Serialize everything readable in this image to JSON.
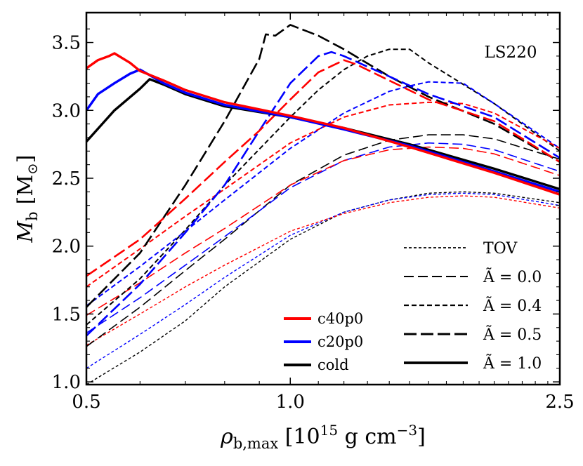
{
  "chart_data": {
    "type": "line",
    "title": "",
    "annotation": "LS220",
    "xscale": "log",
    "xlim": [
      0.5,
      2.5
    ],
    "ylim": [
      0.98,
      3.72
    ],
    "xticks": [
      {
        "value": 0.5,
        "label": "0.5"
      },
      {
        "value": 1.0,
        "label": "1.0"
      },
      {
        "value": 2.5,
        "label": "2.5"
      }
    ],
    "yticks": [
      {
        "value": 1.0,
        "label": "1.0"
      },
      {
        "value": 1.5,
        "label": "1.5"
      },
      {
        "value": 2.0,
        "label": "2.0"
      },
      {
        "value": 2.5,
        "label": "2.5"
      },
      {
        "value": 3.0,
        "label": "3.0"
      },
      {
        "value": 3.5,
        "label": "3.5"
      }
    ],
    "xlabel": {
      "main": "ρ",
      "sub": "b,max",
      "rest": " [10",
      "exp": "15",
      "units": " g cm",
      "units_exp": "−3",
      "close": "]"
    },
    "ylabel": {
      "main": "M",
      "sub": "b",
      "units_open": "[M",
      "units_sub": "⊙",
      "units_close": "]"
    },
    "color_legend": [
      {
        "label": "c40p0",
        "color": "#ff0000"
      },
      {
        "label": "c20p0",
        "color": "#0000ff"
      },
      {
        "label": "cold",
        "color": "#000000"
      }
    ],
    "style_legend": [
      {
        "label": "TOV",
        "style": "tov"
      },
      {
        "label": "Ã = 0.0",
        "style": "a00"
      },
      {
        "label": "Ã = 0.4",
        "style": "a04"
      },
      {
        "label": "Ã = 0.5",
        "style": "a05"
      },
      {
        "label": "Ã = 1.0",
        "style": "a10"
      }
    ],
    "series": [
      {
        "name": "cold TOV",
        "color": "#000000",
        "style": "tov",
        "x": [
          0.5,
          0.6,
          0.7,
          0.8,
          1.0,
          1.2,
          1.4,
          1.6,
          1.8,
          2.0,
          2.5
        ],
        "y": [
          0.98,
          1.22,
          1.45,
          1.7,
          2.05,
          2.25,
          2.34,
          2.39,
          2.4,
          2.39,
          2.32
        ]
      },
      {
        "name": "c20p0 TOV",
        "color": "#0000ff",
        "style": "tov",
        "x": [
          0.5,
          0.6,
          0.7,
          0.8,
          1.0,
          1.2,
          1.4,
          1.6,
          1.8,
          2.0,
          2.5
        ],
        "y": [
          1.1,
          1.35,
          1.57,
          1.77,
          2.08,
          2.25,
          2.34,
          2.38,
          2.39,
          2.38,
          2.3
        ]
      },
      {
        "name": "c40p0 TOV",
        "color": "#ff0000",
        "style": "tov",
        "x": [
          0.5,
          0.6,
          0.7,
          0.8,
          1.0,
          1.2,
          1.4,
          1.6,
          1.8,
          2.0,
          2.5
        ],
        "y": [
          1.27,
          1.5,
          1.7,
          1.86,
          2.11,
          2.24,
          2.32,
          2.36,
          2.37,
          2.36,
          2.28
        ]
      },
      {
        "name": "cold A=0.0",
        "color": "#000000",
        "style": "a00",
        "x": [
          0.5,
          0.6,
          0.7,
          0.8,
          1.0,
          1.2,
          1.4,
          1.6,
          1.8,
          2.0,
          2.5
        ],
        "y": [
          1.26,
          1.55,
          1.82,
          2.05,
          2.45,
          2.67,
          2.78,
          2.82,
          2.82,
          2.79,
          2.64
        ]
      },
      {
        "name": "c20p0 A=0.0",
        "color": "#0000ff",
        "style": "a00",
        "x": [
          0.5,
          0.6,
          0.7,
          0.8,
          1.0,
          1.2,
          1.4,
          1.6,
          1.8,
          2.0,
          2.5
        ],
        "y": [
          1.36,
          1.62,
          1.86,
          2.07,
          2.43,
          2.63,
          2.73,
          2.76,
          2.75,
          2.71,
          2.55
        ]
      },
      {
        "name": "c40p0 A=0.0",
        "color": "#ff0000",
        "style": "a00",
        "x": [
          0.5,
          0.6,
          0.7,
          0.8,
          1.0,
          1.2,
          1.4,
          1.6,
          1.8,
          2.0,
          2.5
        ],
        "y": [
          1.49,
          1.73,
          1.95,
          2.13,
          2.45,
          2.63,
          2.71,
          2.73,
          2.72,
          2.68,
          2.52
        ]
      },
      {
        "name": "cold A=0.4",
        "color": "#000000",
        "style": "a04",
        "x": [
          0.5,
          0.6,
          0.7,
          0.8,
          1.0,
          1.1,
          1.2,
          1.3,
          1.4,
          1.5,
          1.6,
          2.0,
          2.5
        ],
        "y": [
          1.42,
          1.76,
          2.12,
          2.45,
          2.95,
          3.15,
          3.3,
          3.4,
          3.45,
          3.45,
          3.35,
          3.05,
          2.7
        ]
      },
      {
        "name": "c20p0 A=0.4",
        "color": "#0000ff",
        "style": "a04",
        "x": [
          0.5,
          0.6,
          0.7,
          0.8,
          1.0,
          1.2,
          1.4,
          1.5,
          1.6,
          1.8,
          2.0,
          2.5
        ],
        "y": [
          1.56,
          1.85,
          2.11,
          2.34,
          2.72,
          2.98,
          3.14,
          3.18,
          3.21,
          3.2,
          3.05,
          2.72
        ]
      },
      {
        "name": "c40p0 A=0.4",
        "color": "#ff0000",
        "style": "a04",
        "x": [
          0.5,
          0.6,
          0.7,
          0.8,
          1.0,
          1.2,
          1.4,
          1.6,
          1.8,
          2.0,
          2.5
        ],
        "y": [
          1.7,
          1.98,
          2.22,
          2.42,
          2.76,
          2.95,
          3.04,
          3.06,
          3.05,
          2.98,
          2.72
        ]
      },
      {
        "name": "cold A=0.5",
        "color": "#000000",
        "style": "a05",
        "x": [
          0.5,
          0.6,
          0.7,
          0.8,
          0.9,
          0.92,
          0.95,
          1.0,
          1.1,
          1.2,
          1.4,
          1.6,
          2.0,
          2.5
        ],
        "y": [
          1.55,
          1.95,
          2.45,
          2.92,
          3.38,
          3.56,
          3.55,
          3.63,
          3.55,
          3.45,
          3.25,
          3.1,
          2.9,
          2.62
        ]
      },
      {
        "name": "c20p0 A=0.5",
        "color": "#0000ff",
        "style": "a05",
        "x": [
          0.5,
          0.6,
          0.7,
          0.8,
          0.9,
          1.0,
          1.1,
          1.15,
          1.2,
          1.4,
          1.6,
          2.0,
          2.5
        ],
        "y": [
          1.34,
          1.72,
          2.1,
          2.45,
          2.85,
          3.2,
          3.4,
          3.43,
          3.4,
          3.25,
          3.12,
          2.95,
          2.65
        ]
      },
      {
        "name": "c40p0 A=0.5",
        "color": "#ff0000",
        "style": "a05",
        "x": [
          0.5,
          0.6,
          0.7,
          0.8,
          0.9,
          1.0,
          1.1,
          1.2,
          1.25,
          1.4,
          1.6,
          2.0,
          2.5
        ],
        "y": [
          1.78,
          2.05,
          2.35,
          2.62,
          2.85,
          3.08,
          3.28,
          3.37,
          3.34,
          3.22,
          3.08,
          2.92,
          2.62
        ]
      },
      {
        "name": "cold A=1.0",
        "color": "#000000",
        "style": "a10",
        "x": [
          0.5,
          0.55,
          0.6,
          0.62,
          0.65,
          0.7,
          0.8,
          1.0,
          1.2,
          1.5,
          2.0,
          2.5
        ],
        "y": [
          2.77,
          3.0,
          3.16,
          3.23,
          3.19,
          3.12,
          3.03,
          2.95,
          2.87,
          2.75,
          2.57,
          2.42
        ]
      },
      {
        "name": "c20p0 A=1.0",
        "color": "#0000ff",
        "style": "a10",
        "x": [
          0.5,
          0.52,
          0.55,
          0.58,
          0.6,
          0.65,
          0.7,
          0.8,
          1.0,
          1.2,
          1.5,
          2.0,
          2.5
        ],
        "y": [
          3.0,
          3.12,
          3.2,
          3.27,
          3.3,
          3.2,
          3.13,
          3.04,
          2.95,
          2.86,
          2.74,
          2.55,
          2.4
        ]
      },
      {
        "name": "c40p0 A=1.0",
        "color": "#ff0000",
        "style": "a10",
        "x": [
          0.5,
          0.52,
          0.54,
          0.55,
          0.58,
          0.6,
          0.65,
          0.7,
          0.8,
          1.0,
          1.2,
          1.5,
          2.0,
          2.5
        ],
        "y": [
          3.31,
          3.37,
          3.4,
          3.42,
          3.35,
          3.29,
          3.22,
          3.15,
          3.06,
          2.96,
          2.87,
          2.73,
          2.54,
          2.38
        ]
      }
    ]
  }
}
